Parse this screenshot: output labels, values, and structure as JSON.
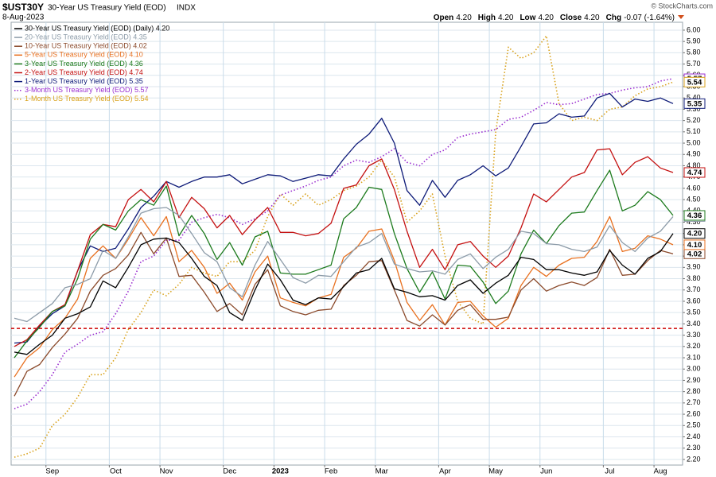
{
  "header": {
    "symbol": "$UST30Y",
    "description": "30-Year US Treasury Yield (EOD)",
    "exchange": "INDX",
    "date": "8-Aug-2023",
    "quote": [
      {
        "label": "Open",
        "value": "4.20"
      },
      {
        "label": "High",
        "value": "4.20"
      },
      {
        "label": "Low",
        "value": "4.20"
      },
      {
        "label": "Close",
        "value": "4.20"
      },
      {
        "label": "Chg",
        "value": "-0.07 (-1.64%)"
      }
    ],
    "credit": "© StockCharts.com"
  },
  "chart_data": {
    "type": "line",
    "categories": [
      null,
      null,
      null,
      "Sep",
      null,
      null,
      null,
      null,
      "Oct",
      null,
      null,
      null,
      "Nov",
      null,
      null,
      null,
      null,
      "Dec",
      null,
      null,
      null,
      "2023",
      null,
      null,
      null,
      "Feb",
      null,
      null,
      null,
      "Mar",
      null,
      null,
      null,
      null,
      "Apr",
      null,
      null,
      null,
      "May",
      null,
      null,
      null,
      "Jun",
      null,
      null,
      null,
      null,
      "Jul",
      null,
      null,
      null,
      "Aug",
      null
    ],
    "ylim": [
      2.15,
      6.07
    ],
    "yticks": [
      {
        "value": 2.2,
        "label": "2.20"
      },
      {
        "value": 2.3,
        "label": "2.30"
      },
      {
        "value": 2.4,
        "label": "2.40"
      },
      {
        "value": 2.5,
        "label": "2.50"
      },
      {
        "value": 2.6,
        "label": "2.60"
      },
      {
        "value": 2.7,
        "label": "2.70"
      },
      {
        "value": 2.8,
        "label": "2.80"
      },
      {
        "value": 2.9,
        "label": "2.90"
      },
      {
        "value": 3.0,
        "label": "3.00"
      },
      {
        "value": 3.1,
        "label": "3.10"
      },
      {
        "value": 3.2,
        "label": "3.20"
      },
      {
        "value": 3.3,
        "label": "3.30"
      },
      {
        "value": 3.4,
        "label": "3.40"
      },
      {
        "value": 3.5,
        "label": "3.50"
      },
      {
        "value": 3.6,
        "label": "3.60"
      },
      {
        "value": 3.7,
        "label": "3.70"
      },
      {
        "value": 3.8,
        "label": "3.80"
      },
      {
        "value": 3.9,
        "label": "3.90"
      },
      {
        "value": 4.0,
        "label": "4.00"
      },
      {
        "value": 4.1,
        "label": "4.10"
      },
      {
        "value": 4.2,
        "label": "4.20"
      },
      {
        "value": 4.3,
        "label": "4.30"
      },
      {
        "value": 4.4,
        "label": "4.40"
      },
      {
        "value": 4.5,
        "label": "4.50"
      },
      {
        "value": 4.6,
        "label": "4.60"
      },
      {
        "value": 4.7,
        "label": "4.70"
      },
      {
        "value": 4.8,
        "label": "4.80"
      },
      {
        "value": 4.9,
        "label": "4.90"
      },
      {
        "value": 5.0,
        "label": "5.00"
      },
      {
        "value": 5.1,
        "label": "5.10"
      },
      {
        "value": 5.2,
        "label": "5.20"
      },
      {
        "value": 5.3,
        "label": "5.30"
      },
      {
        "value": 5.4,
        "label": "5.40"
      },
      {
        "value": 5.5,
        "label": "5.50"
      },
      {
        "value": 5.6,
        "label": "5.60"
      },
      {
        "value": 5.7,
        "label": "5.70"
      },
      {
        "value": 5.8,
        "label": "5.80"
      },
      {
        "value": 5.9,
        "label": "5.90"
      },
      {
        "value": 6.0,
        "label": "6.00"
      }
    ],
    "grid": true,
    "legend": "top-left",
    "reference_line": {
      "value": 3.36,
      "color": "#cc0000"
    },
    "series": [
      {
        "name": "30-Year US Treasury Yield (EOD) (Daily) 4.20",
        "tag": "4.20",
        "color": "#000000",
        "dash": "solid",
        "values": [
          3.15,
          3.13,
          3.22,
          3.3,
          3.45,
          3.49,
          3.55,
          3.78,
          3.72,
          3.9,
          4.1,
          4.15,
          4.16,
          4.12,
          3.98,
          3.82,
          3.74,
          3.5,
          3.43,
          3.7,
          3.93,
          3.79,
          3.61,
          3.57,
          3.63,
          3.62,
          3.73,
          3.85,
          3.88,
          3.98,
          3.71,
          3.68,
          3.64,
          3.65,
          3.61,
          3.74,
          3.79,
          3.67,
          3.76,
          3.83,
          3.99,
          3.97,
          3.88,
          3.88,
          3.85,
          3.83,
          3.86,
          4.05,
          3.92,
          3.84,
          3.98,
          4.04,
          4.2
        ]
      },
      {
        "name": "20-Year US Treasury Yield (EOD) 4.35",
        "tag": "4.35",
        "color": "#8c9ba8",
        "dash": "solid",
        "values": [
          3.45,
          3.42,
          3.5,
          3.58,
          3.72,
          3.75,
          3.8,
          4.05,
          3.98,
          4.17,
          4.38,
          4.42,
          4.43,
          4.36,
          4.2,
          4.03,
          3.95,
          3.72,
          3.64,
          3.92,
          4.13,
          3.97,
          3.81,
          3.76,
          3.83,
          3.82,
          3.95,
          4.08,
          4.12,
          4.2,
          3.93,
          3.89,
          3.86,
          3.87,
          3.84,
          3.97,
          4.02,
          3.89,
          3.99,
          4.06,
          4.22,
          4.2,
          4.11,
          4.1,
          4.06,
          4.04,
          4.08,
          4.27,
          4.12,
          4.04,
          4.16,
          4.22,
          4.35
        ]
      },
      {
        "name": "10-Year US Treasury Yield (EOD) 4.02",
        "tag": "4.02",
        "color": "#8b4a2b",
        "dash": "solid",
        "values": [
          2.76,
          2.98,
          3.04,
          3.19,
          3.31,
          3.45,
          3.69,
          3.83,
          3.89,
          4.01,
          4.21,
          4.02,
          4.16,
          3.82,
          3.83,
          3.68,
          3.51,
          3.58,
          3.48,
          3.75,
          3.88,
          3.56,
          3.51,
          3.48,
          3.52,
          3.53,
          3.74,
          3.83,
          3.95,
          3.96,
          3.7,
          3.43,
          3.38,
          3.48,
          3.39,
          3.52,
          3.57,
          3.44,
          3.44,
          3.46,
          3.7,
          3.8,
          3.69,
          3.74,
          3.77,
          3.74,
          3.81,
          4.06,
          3.83,
          3.84,
          3.96,
          4.05,
          4.02
        ]
      },
      {
        "name": "5-Year US Treasury Yield (EOD) 4.10",
        "tag": "4.10",
        "color": "#e8701f",
        "dash": "solid",
        "values": [
          2.93,
          3.1,
          3.19,
          3.35,
          3.45,
          3.62,
          3.98,
          4.09,
          3.98,
          4.15,
          4.34,
          4.18,
          4.35,
          3.95,
          4.05,
          3.9,
          3.67,
          3.76,
          3.61,
          3.86,
          4.0,
          3.63,
          3.59,
          3.56,
          3.63,
          3.66,
          3.99,
          4.07,
          4.22,
          4.24,
          3.96,
          3.59,
          3.43,
          3.57,
          3.39,
          3.59,
          3.6,
          3.47,
          3.37,
          3.45,
          3.74,
          3.9,
          3.82,
          3.92,
          3.98,
          3.99,
          4.13,
          4.35,
          4.04,
          4.07,
          4.18,
          4.15,
          4.1
        ]
      },
      {
        "name": "3-Year US Treasury Yield (EOD) 4.36",
        "tag": "4.36",
        "color": "#1c7a1c",
        "dash": "solid",
        "values": [
          3.1,
          3.25,
          3.37,
          3.51,
          3.56,
          3.8,
          4.15,
          4.28,
          4.23,
          4.4,
          4.5,
          4.45,
          4.62,
          4.18,
          4.36,
          4.2,
          3.97,
          4.12,
          3.92,
          4.17,
          4.22,
          3.85,
          3.84,
          3.84,
          3.88,
          3.92,
          4.33,
          4.43,
          4.61,
          4.59,
          4.2,
          3.89,
          3.68,
          3.86,
          3.62,
          3.92,
          3.91,
          3.77,
          3.58,
          3.69,
          4.02,
          4.23,
          4.11,
          4.27,
          4.38,
          4.39,
          4.58,
          4.76,
          4.4,
          4.45,
          4.57,
          4.5,
          4.36
        ]
      },
      {
        "name": "2-Year US Treasury Yield (EOD) 4.74",
        "tag": "4.74",
        "color": "#c41010",
        "dash": "solid",
        "values": [
          3.2,
          3.26,
          3.39,
          3.51,
          3.57,
          3.87,
          4.19,
          4.28,
          4.26,
          4.5,
          4.59,
          4.48,
          4.66,
          4.34,
          4.52,
          4.42,
          4.25,
          4.36,
          4.19,
          4.32,
          4.43,
          4.21,
          4.21,
          4.18,
          4.2,
          4.29,
          4.6,
          4.63,
          4.8,
          4.86,
          4.59,
          4.22,
          3.9,
          4.06,
          3.88,
          4.1,
          4.13,
          4.0,
          3.9,
          4.0,
          4.25,
          4.55,
          4.48,
          4.59,
          4.7,
          4.74,
          4.94,
          4.95,
          4.72,
          4.83,
          4.88,
          4.78,
          4.74
        ]
      },
      {
        "name": "1-Year US Treasury Yield (EOD) 5.35",
        "tag": "5.35",
        "color": "#0d1a78",
        "dash": "solid",
        "values": [
          3.23,
          3.24,
          3.38,
          3.49,
          3.56,
          3.87,
          4.09,
          4.04,
          4.07,
          4.24,
          4.43,
          4.53,
          4.66,
          4.61,
          4.66,
          4.7,
          4.7,
          4.72,
          4.64,
          4.68,
          4.72,
          4.71,
          4.66,
          4.69,
          4.72,
          4.71,
          4.86,
          4.99,
          5.08,
          5.22,
          5.0,
          4.58,
          4.45,
          4.67,
          4.52,
          4.67,
          4.72,
          4.8,
          4.71,
          4.78,
          4.97,
          5.17,
          5.18,
          5.26,
          5.23,
          5.24,
          5.4,
          5.44,
          5.32,
          5.39,
          5.37,
          5.4,
          5.35
        ]
      },
      {
        "name": "3-Month US Treasury Yield (EOD) 5.57",
        "tag": "5.57",
        "color": "#9b30d0",
        "dash": "dotted",
        "values": [
          2.65,
          2.69,
          2.8,
          2.95,
          3.15,
          3.22,
          3.3,
          3.33,
          3.49,
          3.69,
          3.95,
          4.0,
          4.14,
          4.14,
          4.3,
          4.34,
          4.37,
          4.34,
          4.28,
          4.33,
          4.4,
          4.54,
          4.58,
          4.62,
          4.67,
          4.7,
          4.8,
          4.85,
          4.83,
          4.88,
          4.95,
          4.83,
          4.8,
          4.9,
          4.94,
          5.05,
          5.08,
          5.1,
          5.12,
          5.21,
          5.23,
          5.29,
          5.36,
          5.34,
          5.35,
          5.39,
          5.43,
          5.44,
          5.47,
          5.49,
          5.5,
          5.55,
          5.57
        ]
      },
      {
        "name": "1-Month US Treasury Yield (EOD) 5.54",
        "tag": "5.54",
        "color": "#d9a21c",
        "dash": "dotted",
        "values": [
          2.22,
          2.25,
          2.3,
          2.5,
          2.6,
          2.75,
          2.95,
          2.95,
          3.1,
          3.35,
          3.5,
          3.7,
          3.65,
          3.75,
          3.9,
          3.85,
          3.82,
          3.95,
          3.95,
          4.05,
          4.35,
          4.55,
          4.45,
          4.55,
          4.45,
          4.5,
          4.58,
          4.62,
          4.7,
          4.85,
          4.7,
          4.3,
          4.4,
          4.55,
          4.0,
          3.6,
          3.45,
          3.4,
          5.1,
          5.85,
          5.75,
          5.8,
          5.95,
          5.35,
          5.2,
          5.23,
          5.2,
          5.3,
          5.32,
          5.42,
          5.48,
          5.5,
          5.54
        ]
      }
    ]
  }
}
